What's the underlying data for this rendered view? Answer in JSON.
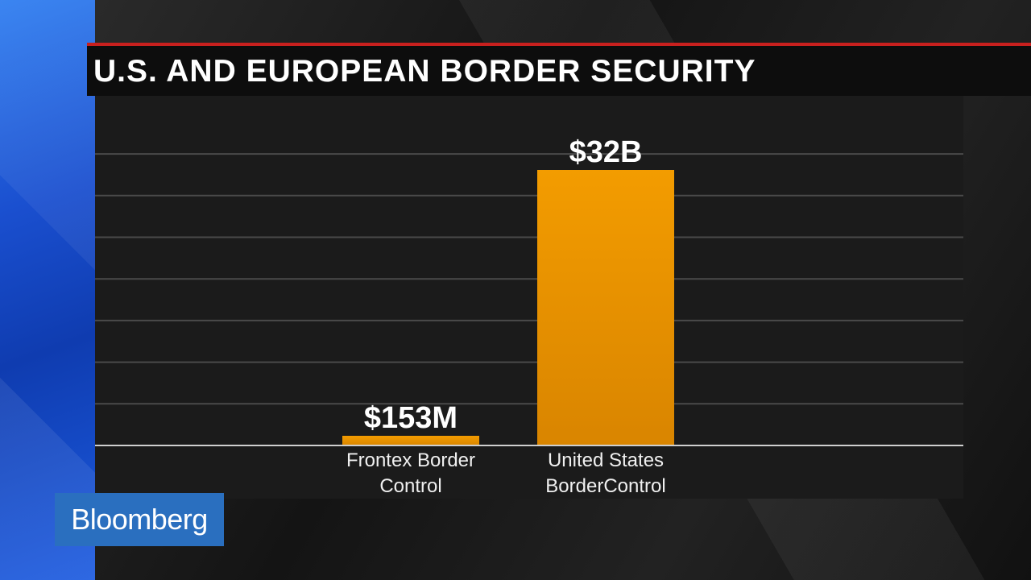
{
  "title": "U.S. AND EUROPEAN BORDER SECURITY",
  "logo": "Bloomberg",
  "colors": {
    "bar_top": "#f39c00",
    "bar_bottom": "#d98500",
    "title_accent": "#c8201e",
    "logo_bg": "#2a6fbf"
  },
  "chart_data": {
    "type": "bar",
    "title": "U.S. AND EUROPEAN BORDER SECURITY",
    "categories": [
      "Frontex Border Control",
      "United States BorderControl"
    ],
    "category_lines": [
      [
        "Frontex Border",
        "Control"
      ],
      [
        "United States",
        "BorderControl"
      ]
    ],
    "values": [
      0.153,
      32
    ],
    "data_labels": [
      "$153M",
      "$32B"
    ],
    "unit": "billion USD",
    "ylim": [
      0,
      32
    ],
    "grid": true,
    "legend": "none"
  }
}
